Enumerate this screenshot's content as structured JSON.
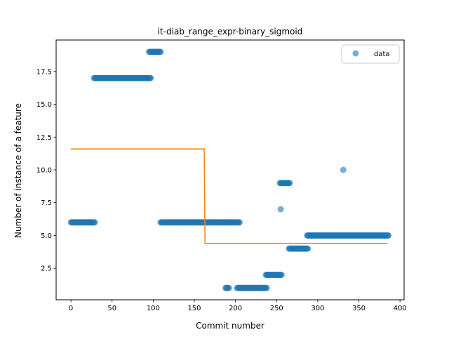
{
  "chart_data": {
    "type": "scatter",
    "title": "it-diab_range_expr-binary_sigmoid",
    "xlabel": "Commit number",
    "ylabel": "Number of instance of a feature",
    "xlim": [
      -18,
      405
    ],
    "ylim": [
      0.1,
      19.9
    ],
    "x_ticks": [
      0,
      50,
      100,
      150,
      200,
      250,
      300,
      350,
      400
    ],
    "y_ticks": [
      2.5,
      5.0,
      7.5,
      10.0,
      12.5,
      15.0,
      17.5
    ],
    "x_tick_labels": [
      "0",
      "50",
      "100",
      "150",
      "200",
      "250",
      "300",
      "350",
      "400"
    ],
    "y_tick_labels": [
      "2.5",
      "5.0",
      "7.5",
      "10.0",
      "12.5",
      "15.0",
      "17.5"
    ],
    "grid": false,
    "legend": {
      "position": "top-right",
      "entries": [
        "data"
      ]
    },
    "colors": {
      "data": "#1f77b4",
      "fit": "#ff7f0e"
    },
    "series": [
      {
        "name": "data",
        "kind": "scatter",
        "segments": [
          {
            "x_start": 0,
            "x_end": 29,
            "y": 6
          },
          {
            "x_start": 28,
            "x_end": 97,
            "y": 17
          },
          {
            "x_start": 95,
            "x_end": 109,
            "y": 19
          },
          {
            "x_start": 109,
            "x_end": 205,
            "y": 6
          },
          {
            "x_start": 188,
            "x_end": 192,
            "y": 1
          },
          {
            "x_start": 202,
            "x_end": 238,
            "y": 1
          },
          {
            "x_start": 237,
            "x_end": 256,
            "y": 2
          },
          {
            "x_start": 254,
            "x_end": 266,
            "y": 9
          },
          {
            "x_start": 265,
            "x_end": 288,
            "y": 4
          },
          {
            "x_start": 287,
            "x_end": 386,
            "y": 5
          }
        ],
        "points": [
          {
            "x": 255,
            "y": 7
          },
          {
            "x": 331,
            "y": 10
          }
        ]
      },
      {
        "name": "",
        "kind": "step-line",
        "x": [
          0,
          162,
          163,
          385
        ],
        "y": [
          11.6,
          11.6,
          4.4,
          4.4
        ]
      }
    ]
  }
}
